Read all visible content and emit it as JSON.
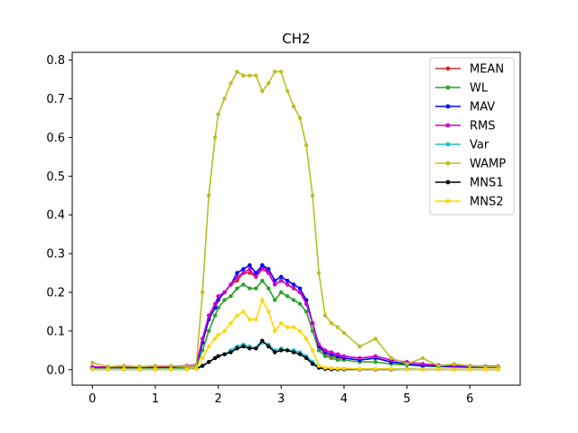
{
  "chart_data": {
    "type": "line",
    "title": "CH2",
    "xlabel": "",
    "ylabel": "",
    "xlim": [
      -0.32,
      6.8
    ],
    "ylim": [
      -0.04,
      0.82
    ],
    "xticks": [
      0,
      1,
      2,
      3,
      4,
      5,
      6
    ],
    "yticks": [
      0.0,
      0.1,
      0.2,
      0.3,
      0.4,
      0.5,
      0.6,
      0.7,
      0.8
    ],
    "ytick_labels": [
      "0.0",
      "0.1",
      "0.2",
      "0.3",
      "0.4",
      "0.5",
      "0.6",
      "0.7",
      "0.8"
    ],
    "grid": false,
    "legend_position": "top-right",
    "x": [
      0,
      0.25,
      0.5,
      0.75,
      1,
      1.25,
      1.5,
      1.65,
      1.75,
      1.85,
      1.95,
      2,
      2.1,
      2.2,
      2.3,
      2.4,
      2.5,
      2.6,
      2.7,
      2.8,
      2.9,
      3,
      3.1,
      3.2,
      3.3,
      3.4,
      3.5,
      3.6,
      3.7,
      3.8,
      3.9,
      4,
      4.25,
      4.5,
      4.75,
      5,
      5.25,
      5.5,
      5.75,
      6,
      6.25,
      6.45
    ],
    "series": [
      {
        "name": "MEAN",
        "color": "#d62728",
        "values": [
          0.005,
          0.005,
          0.005,
          0.006,
          0.006,
          0.007,
          0.008,
          0.01,
          0.07,
          0.13,
          0.16,
          0.18,
          0.2,
          0.22,
          0.23,
          0.25,
          0.25,
          0.24,
          0.27,
          0.25,
          0.22,
          0.23,
          0.22,
          0.21,
          0.2,
          0.18,
          0.12,
          0.06,
          0.04,
          0.035,
          0.03,
          0.03,
          0.025,
          0.03,
          0.02,
          0.015,
          0.01,
          0.01,
          0.008,
          0.008,
          0.007,
          0.007
        ]
      },
      {
        "name": "WL",
        "color": "#2ca02c",
        "values": [
          0.004,
          0.004,
          0.004,
          0.005,
          0.005,
          0.006,
          0.007,
          0.009,
          0.05,
          0.1,
          0.14,
          0.16,
          0.18,
          0.19,
          0.21,
          0.22,
          0.21,
          0.21,
          0.23,
          0.21,
          0.18,
          0.2,
          0.19,
          0.18,
          0.17,
          0.15,
          0.1,
          0.05,
          0.035,
          0.03,
          0.025,
          0.025,
          0.02,
          0.02,
          0.015,
          0.012,
          0.01,
          0.008,
          0.007,
          0.006,
          0.006,
          0.006
        ]
      },
      {
        "name": "MAV",
        "color": "#0000ff",
        "values": [
          0.005,
          0.005,
          0.005,
          0.006,
          0.006,
          0.007,
          0.008,
          0.01,
          0.07,
          0.13,
          0.16,
          0.18,
          0.2,
          0.22,
          0.25,
          0.26,
          0.27,
          0.25,
          0.27,
          0.26,
          0.23,
          0.24,
          0.23,
          0.22,
          0.21,
          0.18,
          0.12,
          0.06,
          0.045,
          0.04,
          0.035,
          0.03,
          0.025,
          0.03,
          0.02,
          0.015,
          0.01,
          0.01,
          0.008,
          0.008,
          0.007,
          0.007
        ]
      },
      {
        "name": "RMS",
        "color": "#cc00cc",
        "values": [
          0.007,
          0.007,
          0.007,
          0.008,
          0.008,
          0.009,
          0.01,
          0.012,
          0.08,
          0.14,
          0.17,
          0.19,
          0.2,
          0.22,
          0.24,
          0.25,
          0.26,
          0.24,
          0.26,
          0.25,
          0.22,
          0.23,
          0.22,
          0.21,
          0.2,
          0.17,
          0.12,
          0.065,
          0.05,
          0.045,
          0.04,
          0.035,
          0.03,
          0.035,
          0.025,
          0.02,
          0.015,
          0.012,
          0.01,
          0.01,
          0.009,
          0.009
        ]
      },
      {
        "name": "Var",
        "color": "#17becf",
        "values": [
          0.002,
          0.002,
          0.002,
          0.002,
          0.002,
          0.002,
          0.003,
          0.004,
          0.01,
          0.02,
          0.03,
          0.035,
          0.04,
          0.05,
          0.06,
          0.065,
          0.06,
          0.055,
          0.07,
          0.065,
          0.05,
          0.055,
          0.05,
          0.05,
          0.045,
          0.035,
          0.02,
          0.008,
          0.004,
          0.003,
          0.003,
          0.003,
          0.002,
          0.002,
          0.002,
          0.002,
          0.001,
          0.001,
          0.001,
          0.001,
          0.001,
          0.001
        ]
      },
      {
        "name": "WAMP",
        "color": "#bcbd22",
        "values": [
          0.018,
          0.008,
          0.01,
          0.008,
          0.01,
          0.01,
          0.008,
          0.01,
          0.2,
          0.45,
          0.6,
          0.66,
          0.7,
          0.74,
          0.77,
          0.76,
          0.76,
          0.76,
          0.72,
          0.74,
          0.77,
          0.77,
          0.72,
          0.68,
          0.65,
          0.58,
          0.45,
          0.25,
          0.14,
          0.12,
          0.11,
          0.095,
          0.06,
          0.08,
          0.03,
          0.015,
          0.03,
          0.01,
          0.015,
          0.01,
          0.008,
          0.008
        ]
      },
      {
        "name": "MNS1",
        "color": "#000000",
        "values": [
          0.001,
          0.001,
          0.001,
          0.001,
          0.001,
          0.001,
          0.001,
          0.002,
          0.01,
          0.02,
          0.03,
          0.035,
          0.04,
          0.045,
          0.055,
          0.06,
          0.055,
          0.055,
          0.075,
          0.06,
          0.045,
          0.05,
          0.05,
          0.045,
          0.04,
          0.03,
          0.015,
          0.005,
          0.002,
          0.001,
          0.001,
          0.001,
          0.001,
          0.001,
          0.001,
          0.001,
          0.001,
          0.001,
          0.001,
          0.001,
          0.001,
          0.001
        ]
      },
      {
        "name": "MNS2",
        "color": "#ffd700",
        "values": [
          0.001,
          0.001,
          0.001,
          0.001,
          0.001,
          0.001,
          0.001,
          0.002,
          0.03,
          0.06,
          0.08,
          0.09,
          0.1,
          0.12,
          0.14,
          0.15,
          0.13,
          0.13,
          0.18,
          0.15,
          0.1,
          0.12,
          0.11,
          0.11,
          0.1,
          0.08,
          0.05,
          0.01,
          0.005,
          0.004,
          0.003,
          0.003,
          0.002,
          0.002,
          0.002,
          0.001,
          0.001,
          0.001,
          0.001,
          0.001,
          0.001,
          0.001
        ]
      }
    ]
  }
}
